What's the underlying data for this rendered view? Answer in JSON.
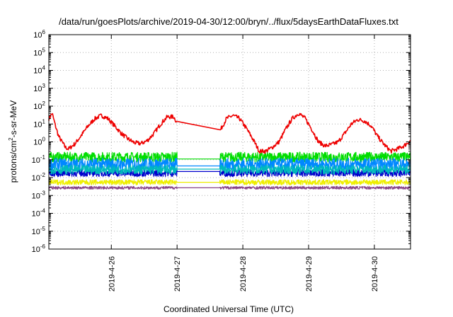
{
  "chart_data": {
    "type": "line",
    "title": "/data/run/goesPlots/archive/2019-04-30/12:00/bryn/../flux/5daysEarthDataFluxes.txt",
    "xlabel": "Coordinated Universal Time (UTC)",
    "ylabel": {
      "pre": "protons/cm",
      "sup": "2",
      "post": "-s-sr-MeV"
    },
    "y_scale": "log",
    "ylim_exp": [
      -6,
      6
    ],
    "xlim_days": [
      25.05,
      30.55
    ],
    "grid": true,
    "x_ticks": [
      {
        "label": "2019-4-26",
        "day": 26
      },
      {
        "label": "2019-4-27",
        "day": 27
      },
      {
        "label": "2019-4-28",
        "day": 28
      },
      {
        "label": "2019-4-29",
        "day": 29
      },
      {
        "label": "2019-4-30",
        "day": 30
      }
    ],
    "y_ticks": [
      {
        "base": "10",
        "exp": "-6"
      },
      {
        "base": "10",
        "exp": "-5"
      },
      {
        "base": "10",
        "exp": "-4"
      },
      {
        "base": "10",
        "exp": "-3"
      },
      {
        "base": "10",
        "exp": "-2"
      },
      {
        "base": "10",
        "exp": "-1"
      },
      {
        "base": "10",
        "exp": "0"
      },
      {
        "base": "10",
        "exp": "1"
      },
      {
        "base": "10",
        "exp": "2"
      },
      {
        "base": "10",
        "exp": "3"
      },
      {
        "base": "10",
        "exp": "4"
      },
      {
        "base": "10",
        "exp": "5"
      },
      {
        "base": "10",
        "exp": "6"
      }
    ],
    "gap_days": [
      27.0,
      27.65
    ],
    "series": [
      {
        "color": "#ee0000",
        "points": [
          [
            25.05,
            20
          ],
          [
            25.1,
            40
          ],
          [
            25.15,
            8
          ],
          [
            25.2,
            2
          ],
          [
            25.3,
            0.5
          ],
          [
            25.35,
            0.4
          ],
          [
            25.45,
            0.8
          ],
          [
            25.55,
            2.5
          ],
          [
            25.65,
            8
          ],
          [
            25.75,
            20
          ],
          [
            25.85,
            30
          ],
          [
            25.95,
            20
          ],
          [
            26.05,
            8
          ],
          [
            26.15,
            3
          ],
          [
            26.25,
            1.5
          ],
          [
            26.35,
            0.9
          ],
          [
            26.45,
            0.8
          ],
          [
            26.55,
            1.2
          ],
          [
            26.65,
            3
          ],
          [
            26.75,
            10
          ],
          [
            26.85,
            25
          ],
          [
            26.95,
            25
          ],
          [
            27.0,
            12
          ],
          [
            27.65,
            4
          ],
          [
            27.75,
            20
          ],
          [
            27.85,
            30
          ],
          [
            27.95,
            20
          ],
          [
            28.05,
            6
          ],
          [
            28.15,
            1.5
          ],
          [
            28.25,
            0.3
          ],
          [
            28.35,
            0.3
          ],
          [
            28.45,
            0.5
          ],
          [
            28.55,
            1
          ],
          [
            28.65,
            5
          ],
          [
            28.75,
            20
          ],
          [
            28.85,
            40
          ],
          [
            28.95,
            20
          ],
          [
            29.05,
            5
          ],
          [
            29.15,
            1
          ],
          [
            29.25,
            0.6
          ],
          [
            29.35,
            0.7
          ],
          [
            29.45,
            1
          ],
          [
            29.55,
            3
          ],
          [
            29.65,
            10
          ],
          [
            29.75,
            18
          ],
          [
            29.85,
            15
          ],
          [
            29.95,
            8
          ],
          [
            30.05,
            2
          ],
          [
            30.15,
            0.7
          ],
          [
            30.25,
            0.3
          ],
          [
            30.35,
            0.4
          ],
          [
            30.45,
            0.6
          ],
          [
            30.55,
            1.2
          ]
        ],
        "noise": 0.12
      },
      {
        "color": "#00dd00",
        "base": 0.14,
        "jitter": 0.28,
        "gap_level": 0.11
      },
      {
        "color": "#0088ff",
        "base": 0.055,
        "jitter": 0.35,
        "gap_level": 0.045
      },
      {
        "color": "#0000cc",
        "base": 0.018,
        "jitter": 0.2,
        "gap_level": 0.022
      },
      {
        "color": "#00bbbb",
        "base": 0.028,
        "jitter": 0.25,
        "gap_level": 0.03
      },
      {
        "color": "#eeee00",
        "base": 0.0055,
        "jitter": 0.15,
        "gap_level": 0.0055
      },
      {
        "color": "#884488",
        "base": 0.0027,
        "jitter": 0.08,
        "gap_level": 0.0027
      }
    ]
  }
}
